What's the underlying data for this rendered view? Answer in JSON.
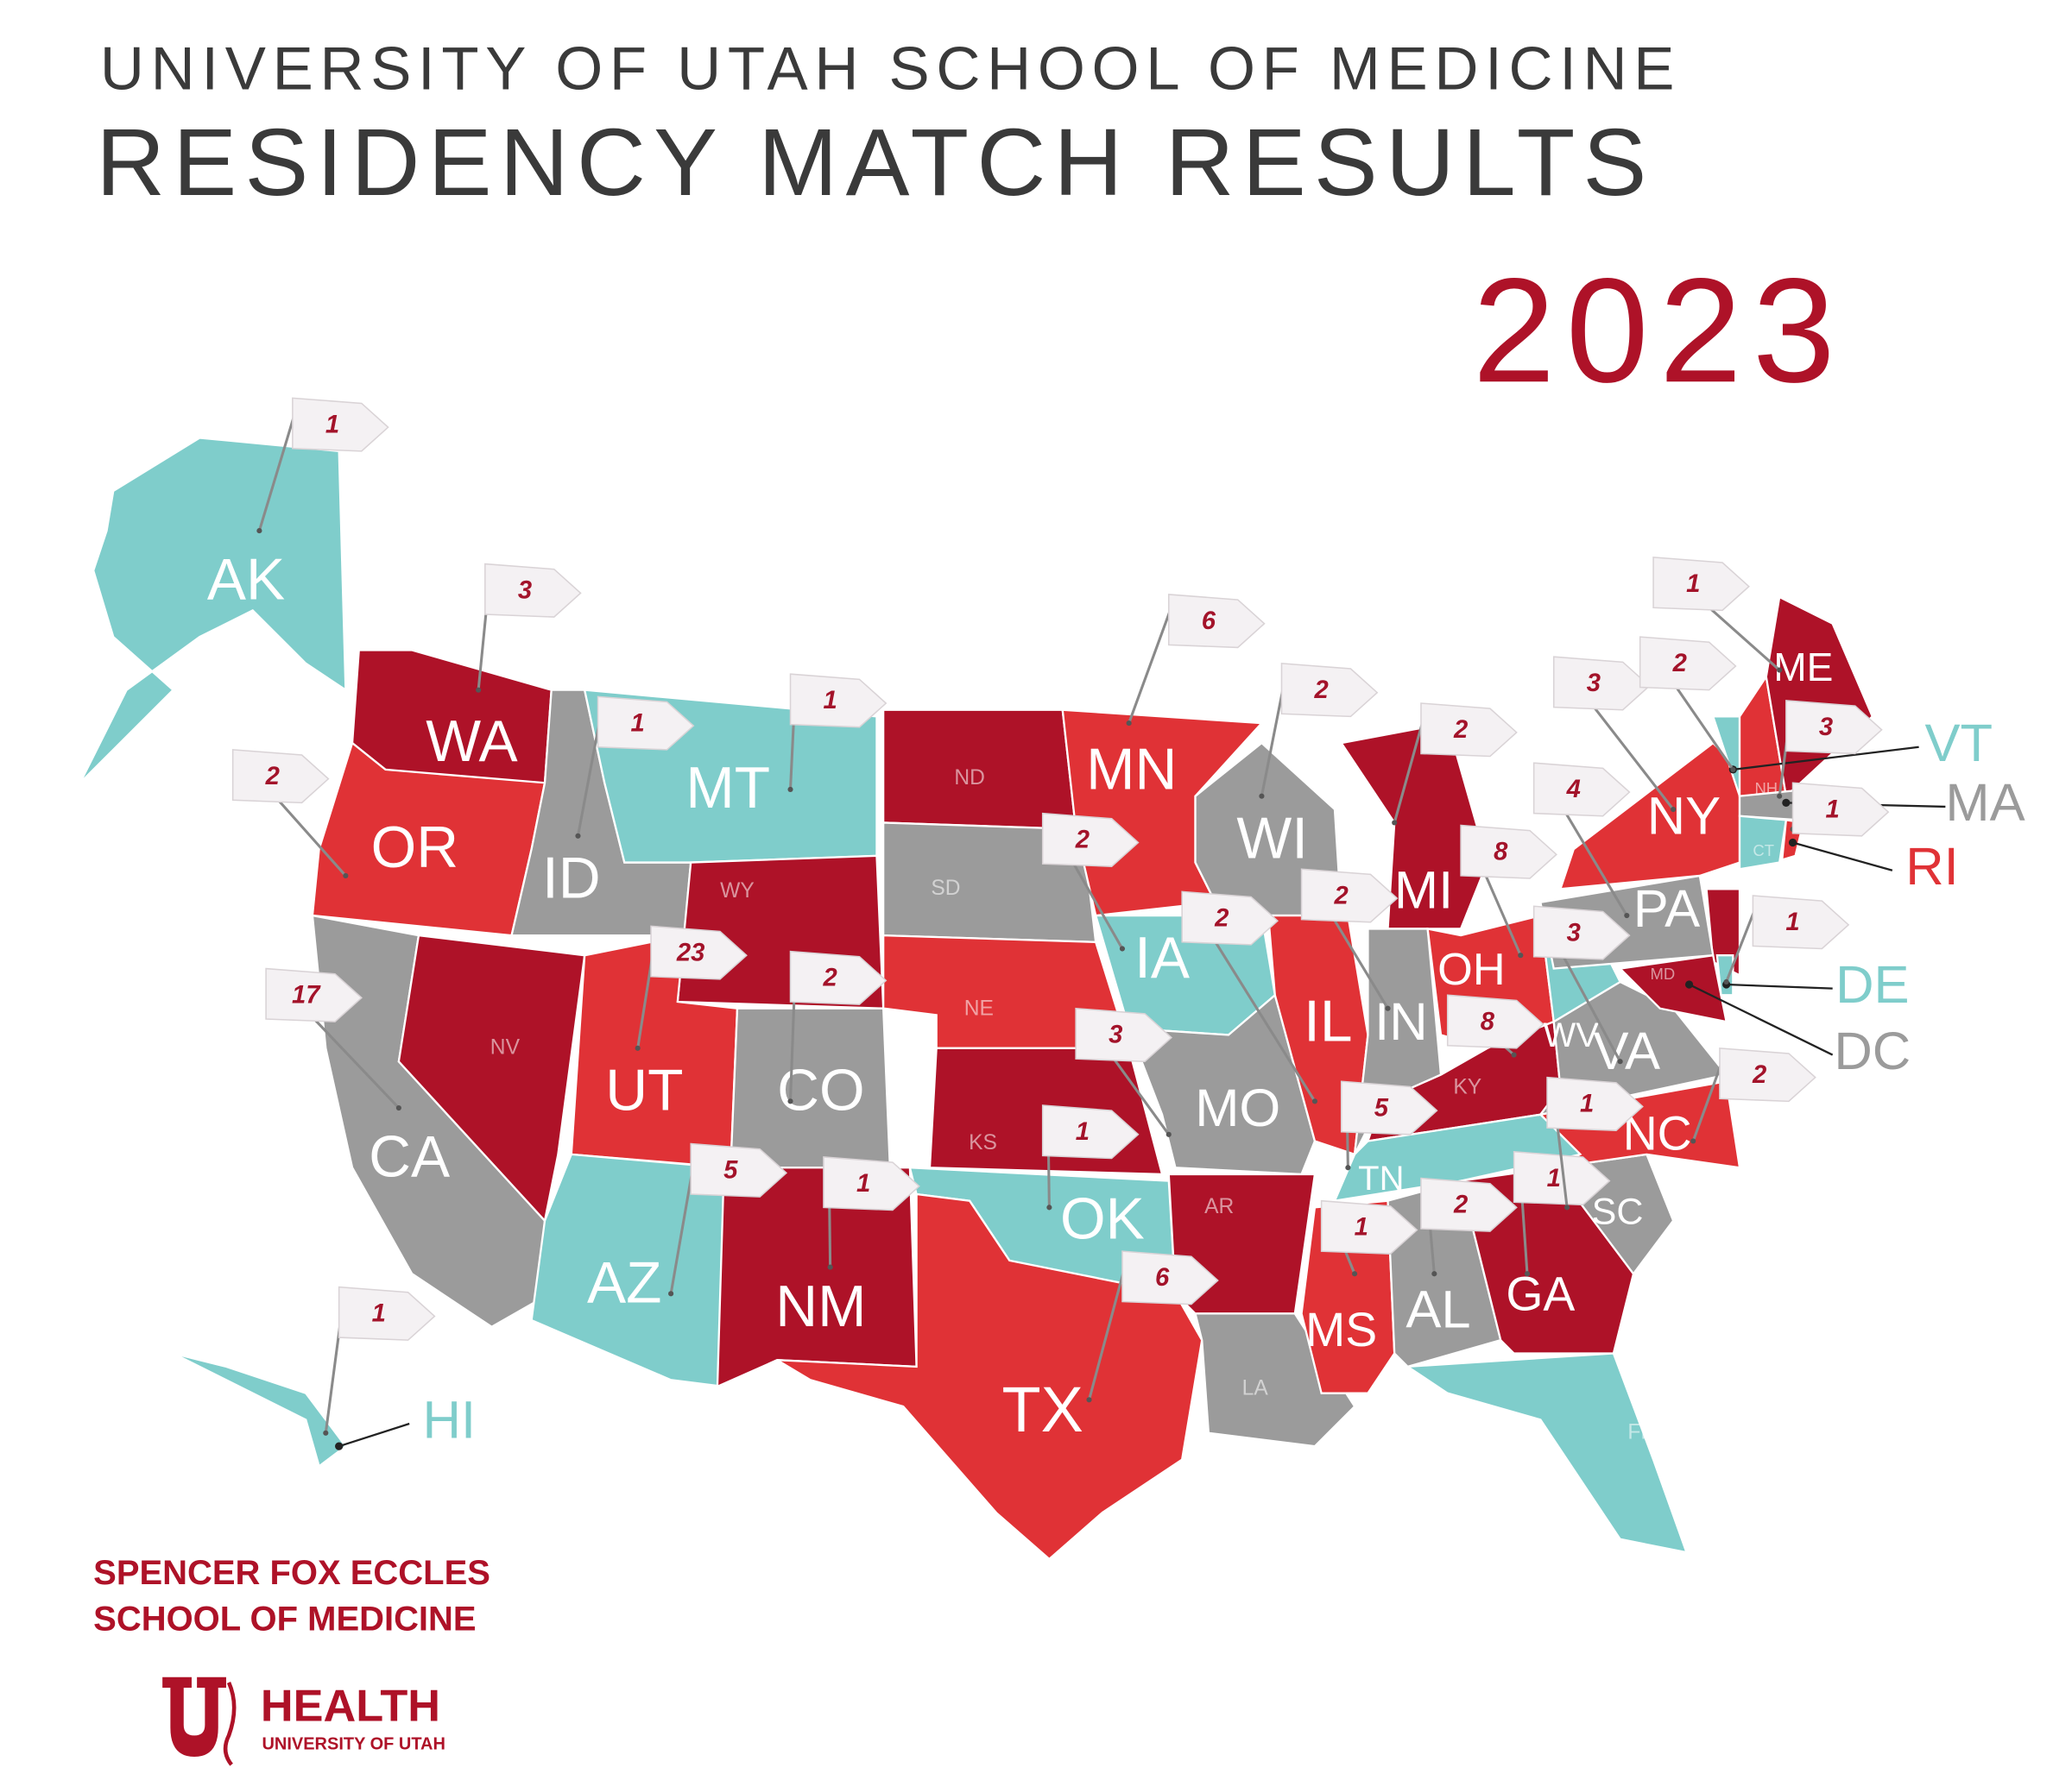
{
  "header": {
    "institution": "UNIVERSITY OF UTAH SCHOOL OF MEDICINE",
    "title": "RESIDENCY MATCH RESULTS",
    "year": "2023"
  },
  "states": [
    {
      "abbr": "AK",
      "color": "#7fcdcb",
      "count": 1
    },
    {
      "abbr": "WA",
      "color": "#ae1228",
      "count": 3
    },
    {
      "abbr": "OR",
      "color": "#e03236",
      "count": 2
    },
    {
      "abbr": "CA",
      "color": "#9b9b9b",
      "count": 17
    },
    {
      "abbr": "NV",
      "color": "#ae1228"
    },
    {
      "abbr": "ID",
      "color": "#9b9b9b",
      "count": 1
    },
    {
      "abbr": "MT",
      "color": "#7fcdcb",
      "count": 1
    },
    {
      "abbr": "WY",
      "color": "#ae1228"
    },
    {
      "abbr": "UT",
      "color": "#e03236",
      "count": 23
    },
    {
      "abbr": "CO",
      "color": "#9b9b9b",
      "count": 2
    },
    {
      "abbr": "AZ",
      "color": "#7fcdcb",
      "count": 5
    },
    {
      "abbr": "NM",
      "color": "#ae1228",
      "count": 1
    },
    {
      "abbr": "ND",
      "color": "#ae1228"
    },
    {
      "abbr": "SD",
      "color": "#9b9b9b"
    },
    {
      "abbr": "NE",
      "color": "#e03236"
    },
    {
      "abbr": "KS",
      "color": "#ae1228"
    },
    {
      "abbr": "OK",
      "color": "#7fcdcb",
      "count": 1
    },
    {
      "abbr": "TX",
      "color": "#e03236",
      "count": 6
    },
    {
      "abbr": "MN",
      "color": "#e03236",
      "count": 6
    },
    {
      "abbr": "IA",
      "color": "#7fcdcb",
      "count": 2
    },
    {
      "abbr": "MO",
      "color": "#9b9b9b",
      "count": 3
    },
    {
      "abbr": "AR",
      "color": "#ae1228"
    },
    {
      "abbr": "LA",
      "color": "#9b9b9b"
    },
    {
      "abbr": "WI",
      "color": "#9b9b9b",
      "count": 2
    },
    {
      "abbr": "IL",
      "color": "#e03236",
      "count": 2
    },
    {
      "abbr": "MI",
      "color": "#ae1228",
      "count": 2
    },
    {
      "abbr": "IN",
      "color": "#9b9b9b",
      "count": 2
    },
    {
      "abbr": "OH",
      "color": "#e03236",
      "count": 8
    },
    {
      "abbr": "KY",
      "color": "#ae1228",
      "count": 8
    },
    {
      "abbr": "TN",
      "color": "#7fcdcb",
      "count": 5
    },
    {
      "abbr": "MS",
      "color": "#e03236",
      "count": 1
    },
    {
      "abbr": "AL",
      "color": "#9b9b9b",
      "count": 2
    },
    {
      "abbr": "GA",
      "color": "#ae1228",
      "count": 1
    },
    {
      "abbr": "FL",
      "color": "#7fcdcb"
    },
    {
      "abbr": "SC",
      "color": "#9b9b9b",
      "count": 1
    },
    {
      "abbr": "NC",
      "color": "#e03236",
      "count": 2
    },
    {
      "abbr": "VA",
      "color": "#9b9b9b",
      "count": 3
    },
    {
      "abbr": "WV",
      "color": "#7fcdcb"
    },
    {
      "abbr": "PA",
      "color": "#9b9b9b",
      "count": 4
    },
    {
      "abbr": "NY",
      "color": "#e03236",
      "count": 3
    },
    {
      "abbr": "VT",
      "color": "#7fcdcb",
      "count": 2
    },
    {
      "abbr": "NH",
      "color": "#e03236"
    },
    {
      "abbr": "ME",
      "color": "#ae1228",
      "count": 1
    },
    {
      "abbr": "MA",
      "color": "#9b9b9b",
      "count": 3
    },
    {
      "abbr": "CT",
      "color": "#7fcdcb"
    },
    {
      "abbr": "RI",
      "color": "#e03236",
      "count": 1
    },
    {
      "abbr": "MD",
      "color": "#ae1228"
    },
    {
      "abbr": "DE",
      "color": "#7fcdcb",
      "count": 1
    },
    {
      "abbr": "DC",
      "color": "#9b9b9b"
    },
    {
      "abbr": "HI",
      "color": "#7fcdcb",
      "count": 1
    }
  ],
  "footer": {
    "school_line1": "SPENCER FOX ECCLES",
    "school_line2": "SCHOOL OF MEDICINE",
    "brand": "HEALTH",
    "brand_sub": "UNIVERSITY OF UTAH"
  }
}
